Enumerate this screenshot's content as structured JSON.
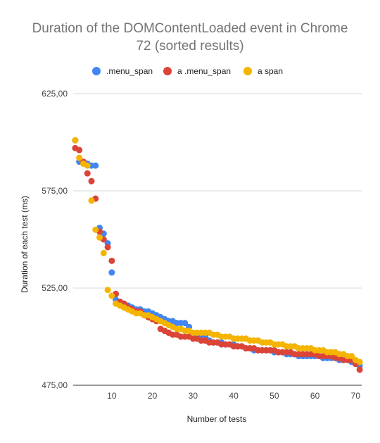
{
  "chart_data": {
    "type": "scatter",
    "title_line1": "Duration of the DOMContentLoaded event in Chrome",
    "title_line2": "72 (sorted results)",
    "xlabel": "Number of tests",
    "ylabel": "Duration of each test (ms)",
    "xlim": [
      0.5,
      71.5
    ],
    "ylim": [
      475,
      625
    ],
    "x_ticks": [
      10,
      20,
      30,
      40,
      50,
      60,
      70
    ],
    "y_ticks": [
      475,
      525,
      575,
      625
    ],
    "y_tick_labels": [
      "475,00",
      "525,00",
      "575,00",
      "625,00"
    ],
    "grid": true,
    "legend_position": "top",
    "series": [
      {
        "name": ".menu_span",
        "color": "#4285f4",
        "values": [
          601,
          590,
          589,
          589,
          588,
          588,
          556,
          553,
          548,
          533,
          519,
          518,
          517,
          516,
          515,
          514,
          514,
          513,
          513,
          512,
          511,
          510,
          509,
          508,
          508,
          507,
          507,
          507,
          505,
          502,
          501,
          500,
          500,
          498,
          497,
          497,
          497,
          496,
          496,
          496,
          495,
          495,
          494,
          494,
          493,
          493,
          493,
          493,
          493,
          492,
          492,
          492,
          491,
          491,
          491,
          490,
          490,
          490,
          490,
          490,
          490,
          489,
          489,
          489,
          489,
          488,
          488,
          488,
          487,
          486,
          485
        ]
      },
      {
        "name": "a  .menu_span",
        "color": "#db4437",
        "values": [
          597,
          596,
          590,
          584,
          580,
          571,
          554,
          550,
          546,
          539,
          522,
          518,
          517,
          515,
          514,
          513,
          513,
          511,
          510,
          509,
          508,
          504,
          503,
          502,
          501,
          501,
          500,
          500,
          500,
          499,
          499,
          498,
          498,
          497,
          497,
          497,
          496,
          496,
          496,
          495,
          495,
          495,
          494,
          494,
          494,
          493,
          493,
          493,
          493,
          493,
          492,
          492,
          492,
          492,
          491,
          491,
          491,
          491,
          491,
          491,
          490,
          490,
          490,
          490,
          489,
          489,
          488,
          488,
          488,
          486,
          483
        ]
      },
      {
        "name": "a  span",
        "color": "#f4b400",
        "values": [
          601,
          592,
          589,
          588,
          570,
          555,
          551,
          543,
          524,
          521,
          517,
          516,
          515,
          514,
          513,
          512,
          512,
          511,
          511,
          510,
          509,
          508,
          507,
          506,
          505,
          504,
          504,
          503,
          503,
          502,
          502,
          502,
          502,
          502,
          501,
          501,
          500,
          500,
          500,
          499,
          499,
          499,
          499,
          498,
          498,
          498,
          497,
          497,
          497,
          496,
          496,
          496,
          495,
          495,
          495,
          494,
          494,
          494,
          494,
          493,
          493,
          493,
          492,
          492,
          492,
          491,
          491,
          490,
          490,
          488,
          487
        ]
      }
    ]
  }
}
